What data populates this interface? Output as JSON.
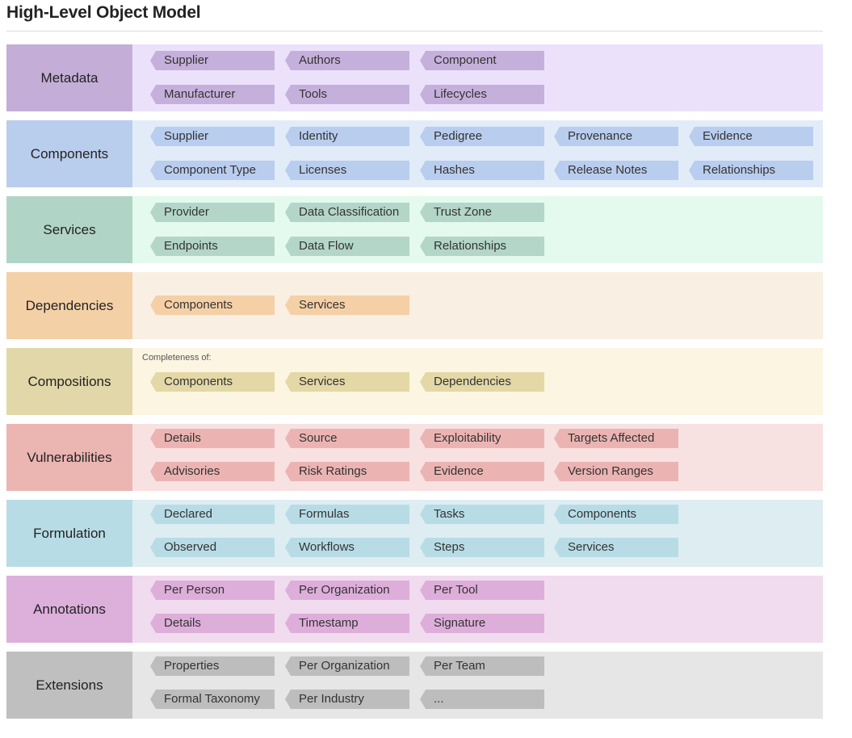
{
  "title": "High-Level Object Model",
  "rows": [
    {
      "label": "Metadata",
      "color": "#c4aed8",
      "bg": "#ece1fb",
      "tag_color": "#c5b0db",
      "tags": [
        [
          "Supplier",
          "Authors",
          "Component"
        ],
        [
          "Manufacturer",
          "Tools",
          "Lifecycles"
        ]
      ]
    },
    {
      "label": "Components",
      "color": "#b9cdec",
      "bg": "#e2ecf9",
      "tag_color": "#b9cdee",
      "tags": [
        [
          "Supplier",
          "Identity",
          "Pedigree",
          "Provenance",
          "Evidence"
        ],
        [
          "Component Type",
          "Licenses",
          "Hashes",
          "Release Notes",
          "Relationships"
        ]
      ]
    },
    {
      "label": "Services",
      "color": "#b0d5c6",
      "bg": "#e4faee",
      "tag_color": "#b3d6c8",
      "tags": [
        [
          "Provider",
          "Data Classification",
          "Trust Zone"
        ],
        [
          "Endpoints",
          "Data Flow",
          "Relationships"
        ]
      ]
    },
    {
      "label": "Dependencies",
      "color": "#f4d0a6",
      "bg": "#f9efe2",
      "tag_color": "#f5d0a6",
      "tags": [
        [
          "Components",
          "Services"
        ]
      ]
    },
    {
      "label": "Compositions",
      "color": "#e2d7a8",
      "bg": "#fcf5e2",
      "tag_color": "#e3d8a6",
      "note": "Completeness of:",
      "tags": [
        [
          "Components",
          "Services",
          "Dependencies"
        ]
      ]
    },
    {
      "label": "Vulnerabilities",
      "color": "#ebb5b2",
      "bg": "#f8e1e1",
      "tag_color": "#ebb4b2",
      "tags": [
        [
          "Details",
          "Source",
          "Exploitability",
          "Targets Affected"
        ],
        [
          "Advisories",
          "Risk Ratings",
          "Evidence",
          "Version Ranges"
        ]
      ]
    },
    {
      "label": "Formulation",
      "color": "#b8dce6",
      "bg": "#ddedf2",
      "tag_color": "#b8dce6",
      "tags": [
        [
          "Declared",
          "Formulas",
          "Tasks",
          "Components"
        ],
        [
          "Observed",
          "Workflows",
          "Steps",
          "Services"
        ]
      ]
    },
    {
      "label": "Annotations",
      "color": "#ddafdb",
      "bg": "#f1dbee",
      "tag_color": "#deaedb",
      "tags": [
        [
          "Per Person",
          "Per Organization",
          "Per Tool"
        ],
        [
          "Details",
          "Timestamp",
          "Signature"
        ]
      ]
    },
    {
      "label": "Extensions",
      "color": "#bfbfbf",
      "bg": "#e6e6e6",
      "tag_color": "#bdbdbd",
      "tags": [
        [
          "Properties",
          "Per Organization",
          "Per Team"
        ],
        [
          "Formal Taxonomy",
          "Per Industry",
          "..."
        ]
      ]
    }
  ]
}
